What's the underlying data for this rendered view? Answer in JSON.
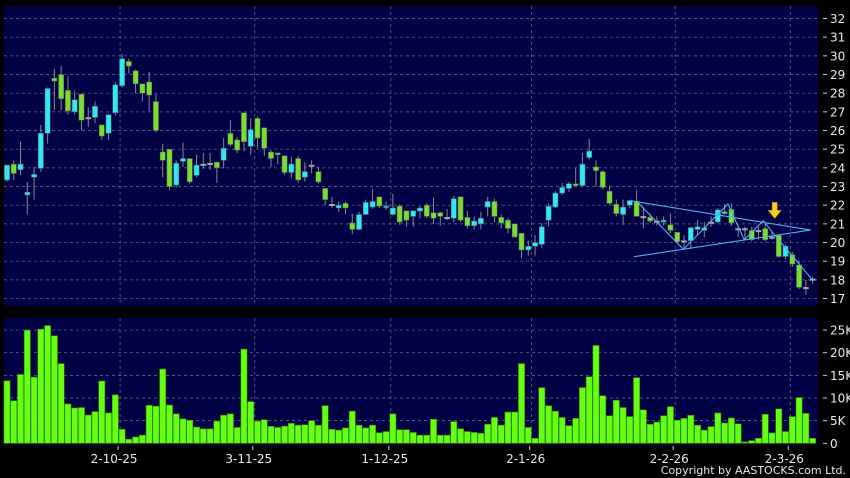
{
  "chart_data": [
    {
      "type": "candlestick",
      "panel": "price",
      "ylim": [
        16.8,
        32.6
      ],
      "yticks": [
        "17",
        "18",
        "19",
        "20",
        "21",
        "22",
        "23",
        "24",
        "25",
        "26",
        "27",
        "28",
        "29",
        "30",
        "31",
        "32"
      ],
      "grid": true,
      "x_tick_labels": [
        {
          "label": "2-10-25",
          "candle_index": 17.7
        },
        {
          "label": "3-11-25",
          "candle_index": 37.6
        },
        {
          "label": "1-12-25",
          "candle_index": 57.7
        },
        {
          "label": "2-1-26",
          "candle_index": 78.5
        },
        {
          "label": "2-2-26",
          "candle_index": 99.7
        },
        {
          "label": "2-3-26",
          "candle_index": 116.7
        }
      ],
      "ohlc_fields": [
        "open",
        "high",
        "low",
        "close"
      ],
      "candles": [
        [
          23.35,
          24.15,
          23.26,
          24.15
        ],
        [
          24.2,
          24.4,
          23.35,
          23.7
        ],
        [
          23.9,
          25.4,
          23.6,
          24.2
        ],
        [
          22.55,
          23.25,
          21.5,
          22.7
        ],
        [
          23.5,
          24.05,
          22.3,
          23.65
        ],
        [
          23.97,
          26.3,
          23.8,
          25.85
        ],
        [
          25.85,
          28.3,
          25.3,
          28.25
        ],
        [
          28.8,
          29.3,
          27.1,
          28.65
        ],
        [
          29.0,
          29.45,
          27.1,
          27.7
        ],
        [
          28.15,
          28.9,
          26.85,
          27.05
        ],
        [
          27.0,
          28.15,
          26.85,
          27.65
        ],
        [
          27.95,
          27.95,
          26.0,
          26.55
        ],
        [
          26.7,
          27.25,
          26.2,
          26.7
        ],
        [
          26.7,
          27.55,
          26.4,
          27.3
        ],
        [
          26.3,
          26.3,
          25.5,
          25.7
        ],
        [
          25.85,
          26.85,
          25.5,
          26.85
        ],
        [
          26.95,
          28.6,
          26.8,
          28.45
        ],
        [
          28.4,
          30.1,
          28.3,
          29.85
        ],
        [
          29.7,
          29.85,
          29.05,
          29.45
        ],
        [
          29.2,
          29.27,
          27.99,
          28.5
        ],
        [
          28.5,
          28.5,
          27.55,
          28.0
        ],
        [
          28.6,
          29.15,
          27.05,
          27.9
        ],
        [
          27.55,
          27.95,
          25.9,
          26.0
        ],
        [
          24.85,
          25.3,
          23.5,
          24.4
        ],
        [
          25.0,
          25.0,
          22.8,
          23.0
        ],
        [
          23.08,
          24.4,
          22.95,
          24.25
        ],
        [
          24.35,
          25.35,
          24.05,
          24.5
        ],
        [
          24.5,
          24.5,
          23.15,
          23.25
        ],
        [
          23.6,
          24.7,
          23.5,
          24.15
        ],
        [
          24.2,
          24.8,
          23.95,
          24.2
        ],
        [
          24.25,
          24.8,
          23.9,
          24.25
        ],
        [
          24.3,
          24.35,
          23.2,
          24.0
        ],
        [
          24.4,
          25.6,
          23.97,
          25.05
        ],
        [
          25.85,
          26.55,
          25.15,
          25.25
        ],
        [
          25.5,
          25.65,
          24.8,
          24.95
        ],
        [
          26.95,
          26.95,
          24.9,
          25.4
        ],
        [
          25.15,
          26.65,
          24.7,
          26.05
        ],
        [
          26.65,
          26.75,
          25.05,
          25.6
        ],
        [
          26.15,
          26.15,
          24.65,
          25.05
        ],
        [
          24.85,
          24.95,
          24.05,
          24.5
        ],
        [
          24.8,
          24.8,
          24.2,
          24.7
        ],
        [
          24.65,
          24.65,
          23.6,
          23.75
        ],
        [
          23.75,
          24.6,
          23.45,
          24.2
        ],
        [
          24.5,
          24.65,
          23.2,
          23.35
        ],
        [
          23.5,
          24.3,
          23.25,
          23.8
        ],
        [
          24.15,
          24.4,
          23.7,
          24.15
        ],
        [
          23.8,
          24.05,
          23.15,
          23.25
        ],
        [
          22.9,
          22.9,
          22.0,
          22.3
        ],
        [
          22.05,
          22.45,
          21.85,
          22.05
        ],
        [
          21.85,
          22.2,
          21.65,
          22.0
        ],
        [
          22.1,
          22.2,
          21.5,
          21.85
        ],
        [
          21.05,
          21.55,
          20.45,
          20.7
        ],
        [
          20.7,
          21.65,
          20.65,
          21.5
        ],
        [
          21.5,
          22.3,
          21.5,
          22.15
        ],
        [
          21.9,
          22.85,
          21.8,
          22.2
        ],
        [
          22.45,
          22.45,
          21.85,
          21.95
        ],
        [
          21.88,
          22.2,
          21.75,
          21.95
        ],
        [
          21.5,
          22.6,
          21.45,
          21.85
        ],
        [
          21.95,
          22.05,
          20.95,
          21.1
        ],
        [
          21.7,
          21.7,
          20.85,
          21.2
        ],
        [
          21.4,
          21.7,
          20.85,
          21.7
        ],
        [
          21.68,
          21.95,
          21.3,
          21.85
        ],
        [
          22.0,
          22.1,
          21.3,
          21.4
        ],
        [
          21.6,
          22.4,
          21.0,
          21.3
        ],
        [
          21.6,
          21.65,
          20.9,
          21.4
        ],
        [
          21.35,
          21.8,
          21.2,
          21.35
        ],
        [
          21.3,
          22.5,
          21.1,
          22.35
        ],
        [
          22.45,
          22.45,
          21.1,
          21.2
        ],
        [
          21.35,
          21.7,
          20.75,
          20.9
        ],
        [
          20.9,
          21.4,
          20.7,
          21.15
        ],
        [
          21.0,
          21.65,
          20.7,
          21.3
        ],
        [
          21.9,
          22.45,
          21.4,
          22.2
        ],
        [
          22.2,
          22.35,
          21.1,
          21.4
        ],
        [
          21.35,
          21.5,
          20.75,
          21.05
        ],
        [
          21.2,
          21.3,
          20.5,
          20.75
        ],
        [
          21.0,
          21.0,
          20.25,
          20.3
        ],
        [
          20.5,
          20.5,
          19.15,
          19.6
        ],
        [
          19.6,
          20.1,
          19.3,
          19.8
        ],
        [
          19.8,
          20.4,
          19.3,
          20.0
        ],
        [
          19.9,
          21.05,
          19.7,
          20.85
        ],
        [
          21.2,
          22.1,
          20.85,
          21.95
        ],
        [
          21.9,
          22.75,
          21.85,
          22.65
        ],
        [
          22.65,
          23.2,
          22.55,
          22.95
        ],
        [
          22.9,
          23.25,
          22.7,
          23.15
        ],
        [
          23.15,
          24.0,
          23.0,
          23.05
        ],
        [
          23.05,
          24.8,
          23.0,
          24.2
        ],
        [
          24.55,
          25.55,
          24.45,
          24.9
        ],
        [
          24.05,
          24.4,
          23.0,
          23.85
        ],
        [
          23.8,
          23.9,
          22.85,
          22.95
        ],
        [
          22.75,
          23.05,
          22.0,
          22.1
        ],
        [
          22.05,
          22.3,
          21.4,
          21.55
        ],
        [
          21.5,
          22.3,
          20.95,
          21.9
        ],
        [
          22.0,
          22.3,
          21.85,
          22.25
        ],
        [
          22.2,
          22.8,
          21.4,
          21.4
        ],
        [
          21.4,
          21.9,
          20.75,
          21.4
        ],
        [
          21.35,
          21.55,
          21.05,
          21.15
        ],
        [
          21.15,
          21.4,
          20.9,
          21.15
        ],
        [
          21.1,
          21.4,
          20.9,
          21.2
        ],
        [
          20.95,
          21.55,
          20.5,
          20.65
        ],
        [
          20.55,
          20.55,
          19.95,
          20.05
        ],
        [
          20.1,
          20.4,
          19.6,
          20.1
        ],
        [
          20.1,
          20.85,
          19.7,
          20.8
        ],
        [
          20.7,
          21.2,
          20.4,
          20.85
        ],
        [
          20.65,
          21.1,
          20.3,
          20.8
        ],
        [
          21.1,
          21.4,
          20.85,
          21.1
        ],
        [
          21.1,
          21.85,
          21.05,
          21.75
        ],
        [
          21.55,
          22.05,
          21.5,
          21.65
        ],
        [
          21.78,
          22.1,
          20.9,
          21.05
        ],
        [
          20.75,
          20.95,
          20.3,
          20.75
        ],
        [
          20.75,
          20.85,
          20.15,
          20.75
        ],
        [
          20.65,
          20.85,
          20.05,
          20.15
        ],
        [
          20.65,
          20.85,
          20.15,
          20.65
        ],
        [
          20.75,
          21.0,
          20.05,
          20.15
        ],
        [
          20.3,
          20.6,
          20.15,
          20.3
        ],
        [
          20.4,
          20.4,
          19.2,
          19.25
        ],
        [
          19.25,
          19.9,
          19.1,
          19.8
        ],
        [
          19.35,
          19.5,
          18.7,
          18.85
        ],
        [
          18.8,
          19.05,
          17.5,
          17.6
        ],
        [
          17.6,
          18.0,
          17.2,
          17.6
        ],
        [
          18.05,
          18.15,
          17.8,
          18.05
        ]
      ],
      "annotations": {
        "triangle_upper_line": [
          [
            93.1,
            22.24
          ],
          [
            119.7,
            20.67
          ]
        ],
        "triangle_lower_line": [
          [
            93.6,
            19.24
          ],
          [
            119.7,
            20.67
          ]
        ],
        "zigzag": [
          [
            94.3,
            22.1
          ],
          [
            100.9,
            19.64
          ],
          [
            107.5,
            22.06
          ],
          [
            109.9,
            20.14
          ],
          [
            112.7,
            21.17
          ],
          [
            114.4,
            20.4
          ],
          [
            119.9,
            18.03
          ]
        ],
        "arrow_down": {
          "candle_index": 114.4,
          "price": 21.4
        }
      },
      "colors": {
        "up": "#33e8f2",
        "down": "#7ddc2e",
        "unchanged": "#a8a8a8",
        "background": "#000044",
        "grid": "#6f6f9a",
        "annotation": "#4ab4f0",
        "arrow": "#ffcc22"
      }
    },
    {
      "type": "bar",
      "panel": "volume",
      "ylim": [
        0,
        27.5
      ],
      "yticks": [
        {
          "value": 0,
          "label": "0"
        },
        {
          "value": 5,
          "label": "5K"
        },
        {
          "value": 10,
          "label": "10K"
        },
        {
          "value": 15,
          "label": "15K"
        },
        {
          "value": 20,
          "label": "20K"
        },
        {
          "value": 25,
          "label": "25K"
        }
      ],
      "unit": "K",
      "values": [
        13.8,
        9.4,
        15.2,
        25.0,
        14.6,
        25.2,
        26.0,
        23.75,
        17.6,
        8.7,
        7.8,
        7.9,
        6.25,
        7.0,
        13.75,
        6.7,
        10.7,
        3.1,
        0.9,
        1.4,
        1.8,
        8.4,
        8.2,
        16.4,
        8.45,
        6.5,
        5.4,
        5.1,
        3.6,
        3.2,
        3.2,
        4.9,
        6.2,
        6.5,
        3.5,
        20.8,
        9.2,
        4.9,
        5.2,
        3.75,
        3.5,
        3.8,
        4.4,
        4.0,
        4.1,
        5.0,
        4.0,
        8.3,
        3.1,
        2.9,
        3.4,
        7.1,
        4.0,
        3.4,
        4.0,
        2.35,
        2.6,
        6.5,
        3.0,
        3.0,
        2.4,
        1.8,
        1.8,
        5.3,
        1.8,
        1.8,
        4.8,
        3.2,
        2.6,
        2.4,
        2.2,
        4.2,
        5.7,
        4.0,
        6.9,
        6.9,
        17.6,
        3.5,
        1.1,
        12.3,
        8.3,
        7.1,
        5.7,
        3.9,
        5.5,
        12.3,
        14.7,
        21.6,
        10.5,
        6.1,
        9.5,
        7.9,
        5.9,
        14.5,
        7.4,
        4.2,
        4.7,
        6.1,
        8.1,
        5.1,
        5.5,
        6.2,
        4.0,
        2.9,
        3.7,
        6.7,
        4.5,
        5.6,
        4.3,
        0.3,
        0.6,
        1.1,
        6.4,
        2.3,
        7.6,
        2.6,
        5.9,
        10.1,
        6.6,
        1.1
      ],
      "colors": {
        "bar": "#66ff11",
        "bar_edge": "#2f8a00"
      }
    }
  ],
  "footer": {
    "copyright": "Copyright by AASTOCKS.com Ltd."
  }
}
